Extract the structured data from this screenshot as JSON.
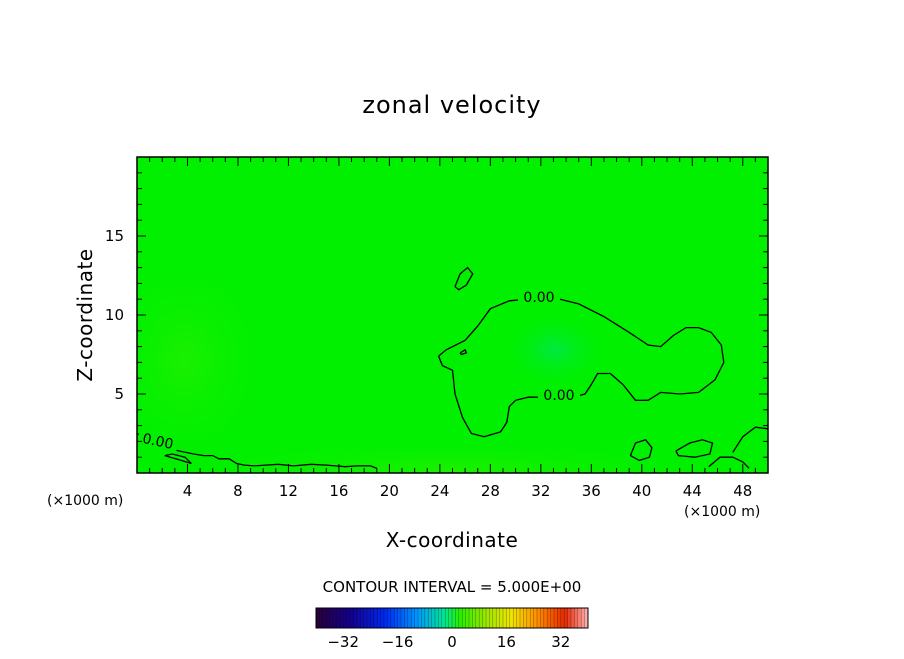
{
  "chart_data": {
    "type": "heatmap",
    "title": "zonal velocity",
    "xlabel": "X-coordinate",
    "ylabel": "Z-coordinate",
    "x_unit_left": "(×1000 m)",
    "x_unit_right": "(×1000 m)",
    "xlim": [
      0,
      50
    ],
    "ylim": [
      0,
      20
    ],
    "x_ticks": [
      4,
      8,
      12,
      16,
      20,
      24,
      28,
      32,
      36,
      40,
      44,
      48
    ],
    "x_tick_labels": [
      "4",
      "8",
      "12",
      "16",
      "20",
      "24",
      "28",
      "32",
      "36",
      "40",
      "44",
      "48"
    ],
    "y_ticks": [
      5,
      10,
      15
    ],
    "y_tick_labels": [
      "5",
      "10",
      "15"
    ],
    "field_color": "#00f000",
    "contour_interval_text": "CONTOUR INTERVAL = 5.000E+00",
    "contour_labels": [
      "0.00",
      "0.00",
      "0.00"
    ],
    "contours": [
      {
        "level": 0,
        "points": [
          [
            23.9,
            7.4
          ],
          [
            24.5,
            7.8
          ],
          [
            26,
            8.4
          ],
          [
            27,
            9.3
          ],
          [
            28,
            10.4
          ],
          [
            29.5,
            10.9
          ],
          [
            31,
            11.0
          ],
          [
            33,
            11.1
          ],
          [
            35,
            10.7
          ],
          [
            37,
            9.9
          ],
          [
            39,
            8.9
          ],
          [
            40.5,
            8.1
          ],
          [
            41.5,
            8.0
          ],
          [
            42.5,
            8.7
          ],
          [
            43.5,
            9.2
          ],
          [
            44.5,
            9.2
          ],
          [
            45.5,
            8.9
          ],
          [
            46.3,
            8.1
          ],
          [
            46.5,
            7.0
          ],
          [
            45.8,
            5.9
          ],
          [
            44.5,
            5.1
          ],
          [
            43,
            5.0
          ],
          [
            41.5,
            5.1
          ],
          [
            40.5,
            4.6
          ],
          [
            39.5,
            4.6
          ],
          [
            38.5,
            5.6
          ],
          [
            37.5,
            6.3
          ],
          [
            36.5,
            6.3
          ],
          [
            36,
            5.6
          ],
          [
            35.5,
            5.0
          ],
          [
            34.5,
            4.8
          ],
          [
            33,
            4.8
          ],
          [
            31,
            4.8
          ],
          [
            30,
            4.6
          ],
          [
            29.5,
            4.2
          ],
          [
            29.3,
            3.2
          ],
          [
            28.8,
            2.6
          ],
          [
            27.5,
            2.3
          ],
          [
            26.5,
            2.5
          ],
          [
            25.8,
            3.5
          ],
          [
            25.2,
            5.0
          ],
          [
            25,
            6.5
          ],
          [
            24.2,
            6.8
          ],
          [
            23.9,
            7.4
          ]
        ]
      },
      {
        "level": 0,
        "points": [
          [
            25.2,
            11.8
          ],
          [
            25.6,
            12.6
          ],
          [
            26.2,
            13.0
          ],
          [
            26.6,
            12.6
          ],
          [
            26.1,
            11.9
          ],
          [
            25.5,
            11.6
          ],
          [
            25.2,
            11.8
          ]
        ]
      },
      {
        "level": 0,
        "points": [
          [
            25.6,
            7.6
          ],
          [
            26.0,
            7.8
          ],
          [
            26.1,
            7.6
          ],
          [
            25.7,
            7.5
          ],
          [
            25.6,
            7.6
          ]
        ]
      },
      {
        "level": 0,
        "points": [
          [
            0,
            2.5
          ],
          [
            0.8,
            2.2
          ],
          [
            1.5,
            1.8
          ],
          [
            2.3,
            1.6
          ],
          [
            3.3,
            1.4
          ],
          [
            4.5,
            1.2
          ],
          [
            5.3,
            1.1
          ],
          [
            6,
            1.1
          ],
          [
            6.5,
            0.9
          ],
          [
            7.3,
            0.9
          ],
          [
            7.9,
            0.6
          ],
          [
            8.5,
            0.5
          ],
          [
            9.3,
            0.45
          ],
          [
            10.2,
            0.5
          ],
          [
            11.2,
            0.55
          ],
          [
            12.4,
            0.45
          ],
          [
            13.8,
            0.55
          ],
          [
            15,
            0.5
          ],
          [
            16.5,
            0.4
          ],
          [
            17.5,
            0.45
          ],
          [
            18.5,
            0.45
          ],
          [
            19,
            0.3
          ]
        ]
      },
      {
        "level": 0,
        "points": [
          [
            2.2,
            1.1
          ],
          [
            3.5,
            0.8
          ],
          [
            4.3,
            0.6
          ],
          [
            3.8,
            1.0
          ],
          [
            2.8,
            1.2
          ],
          [
            2.2,
            1.1
          ]
        ]
      },
      {
        "level": 0,
        "points": [
          [
            39.1,
            1.1
          ],
          [
            39.5,
            1.9
          ],
          [
            40.3,
            2.1
          ],
          [
            40.8,
            1.6
          ],
          [
            40.6,
            1.0
          ],
          [
            39.8,
            0.8
          ],
          [
            39.1,
            1.1
          ]
        ]
      },
      {
        "level": 0,
        "points": [
          [
            42.7,
            1.4
          ],
          [
            43.8,
            1.9
          ],
          [
            44.8,
            2.1
          ],
          [
            45.6,
            1.9
          ],
          [
            45.4,
            1.2
          ],
          [
            44.2,
            1.0
          ],
          [
            42.9,
            1.1
          ],
          [
            42.7,
            1.4
          ]
        ]
      },
      {
        "level": 0,
        "points": [
          [
            47.2,
            1.3
          ],
          [
            48,
            2.3
          ],
          [
            49,
            2.9
          ],
          [
            50,
            2.8
          ]
        ]
      },
      {
        "level": 0,
        "points": [
          [
            45.3,
            0.4
          ],
          [
            46.2,
            1.0
          ],
          [
            47.2,
            1.0
          ],
          [
            48,
            0.7
          ],
          [
            48.5,
            0.3
          ]
        ]
      }
    ],
    "colorbar": {
      "min": -40,
      "max": 40,
      "tick_values": [
        -32,
        -16,
        0,
        16,
        32
      ],
      "tick_labels": [
        "−32",
        "−16",
        "0",
        "16",
        "32"
      ]
    }
  }
}
